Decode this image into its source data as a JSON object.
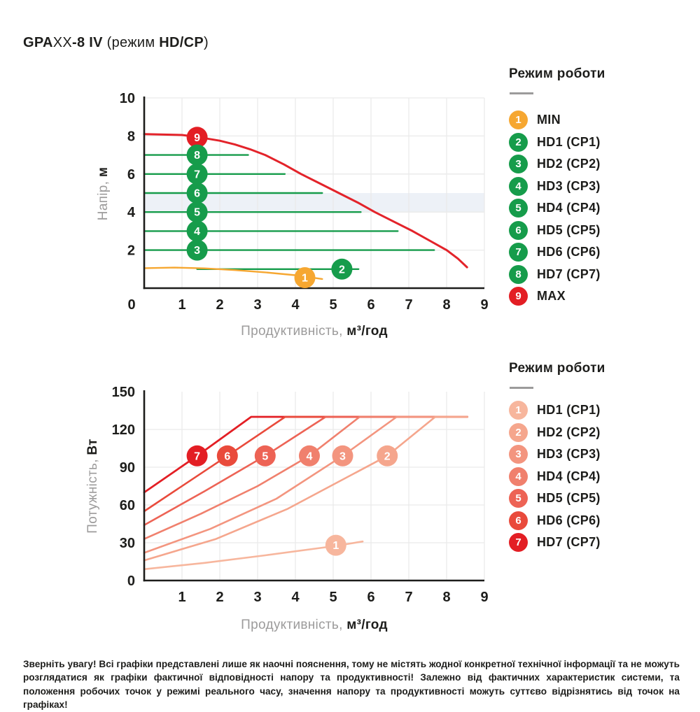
{
  "title": {
    "b1": "GPA",
    "r1": "XX",
    "b2": "-8 IV",
    "r2": " (режим ",
    "b3": "HD/CP",
    "r3": ")"
  },
  "colors": {
    "text_dark": "#1D1D1B",
    "text_gray": "#9C9B9B",
    "grid": "#EAEAEA",
    "band": "#EDF1F7",
    "green": "#169C4B",
    "orange": "#F6A731",
    "red": "#E31E24"
  },
  "legend_top": {
    "title": "Режим роботи",
    "items": [
      {
        "num": "1",
        "label": "MIN",
        "color": "#F6A731"
      },
      {
        "num": "2",
        "label": "HD1 (CP1)",
        "color": "#169C4B"
      },
      {
        "num": "3",
        "label": "HD2 (CP2)",
        "color": "#169C4B"
      },
      {
        "num": "4",
        "label": "HD3 (CP3)",
        "color": "#169C4B"
      },
      {
        "num": "5",
        "label": "HD4 (CP4)",
        "color": "#169C4B"
      },
      {
        "num": "6",
        "label": "HD5 (CP5)",
        "color": "#169C4B"
      },
      {
        "num": "7",
        "label": "HD6 (CP6)",
        "color": "#169C4B"
      },
      {
        "num": "8",
        "label": "HD7 (CP7)",
        "color": "#169C4B"
      },
      {
        "num": "9",
        "label": "MAX",
        "color": "#E31E24"
      }
    ]
  },
  "legend_bottom": {
    "title": "Режим роботи",
    "items": [
      {
        "num": "1",
        "label": "HD1 (CP1)",
        "color": "#F7B69D"
      },
      {
        "num": "2",
        "label": "HD2 (CP2)",
        "color": "#F5A68D"
      },
      {
        "num": "3",
        "label": "HD3 (CP3)",
        "color": "#F3957F"
      },
      {
        "num": "4",
        "label": "HD4 (CP4)",
        "color": "#F0806D"
      },
      {
        "num": "5",
        "label": "HD5 (CP5)",
        "color": "#ED6355"
      },
      {
        "num": "6",
        "label": "HD6 (CP6)",
        "color": "#E94A3B"
      },
      {
        "num": "7",
        "label": "HD7 (CP7)",
        "color": "#E31E24"
      }
    ]
  },
  "chart_data": [
    {
      "type": "line",
      "title": "Крива напору (Напір vs Продуктивність)",
      "xlabel_gray": "Продуктивність,",
      "xlabel_bold": "м³/год",
      "ylabel_gray": "Напір,",
      "ylabel_bold": "м",
      "xlim": [
        0,
        9
      ],
      "ylim": [
        0,
        10
      ],
      "x_ticks": [
        0,
        1,
        2,
        3,
        4,
        5,
        6,
        7,
        8,
        9
      ],
      "y_ticks": [
        2,
        4,
        6,
        8,
        10
      ],
      "grid_x": [
        1,
        2,
        3,
        4,
        5,
        6,
        7,
        8,
        9
      ],
      "grid_y": [
        2,
        4,
        6,
        8,
        10
      ],
      "band": {
        "y0": 4,
        "y1": 5,
        "color": "#EDF1F7"
      },
      "series": [
        {
          "name": "MAX",
          "color": "#E3232A",
          "width": 3,
          "points": [
            [
              0,
              8.1
            ],
            [
              1,
              8.05
            ],
            [
              1.4,
              7.95
            ],
            [
              2,
              7.75
            ],
            [
              2.4,
              7.55
            ],
            [
              2.8,
              7.3
            ],
            [
              3.2,
              7
            ],
            [
              3.7,
              6.5
            ],
            [
              4.15,
              6
            ],
            [
              4.65,
              5.5
            ],
            [
              5.15,
              5
            ],
            [
              5.65,
              4.5
            ],
            [
              6.1,
              4
            ],
            [
              6.6,
              3.5
            ],
            [
              7.1,
              3
            ],
            [
              7.55,
              2.5
            ],
            [
              8,
              2
            ],
            [
              8.3,
              1.55
            ],
            [
              8.54,
              1.1
            ]
          ]
        },
        {
          "name": "HD7 (CP7)",
          "color": "#169C4B",
          "width": 2.4,
          "points": [
            [
              0,
              7
            ],
            [
              2.75,
              7
            ]
          ]
        },
        {
          "name": "HD6 (CP6)",
          "color": "#169C4B",
          "width": 2.4,
          "points": [
            [
              0,
              6
            ],
            [
              3.72,
              6
            ]
          ]
        },
        {
          "name": "HD5 (CP5)",
          "color": "#169C4B",
          "width": 2.4,
          "points": [
            [
              0,
              5
            ],
            [
              4.71,
              5
            ]
          ]
        },
        {
          "name": "HD4 (CP4)",
          "color": "#169C4B",
          "width": 2.4,
          "points": [
            [
              0,
              4
            ],
            [
              5.73,
              4
            ]
          ]
        },
        {
          "name": "HD3 (CP3)",
          "color": "#169C4B",
          "width": 2.4,
          "points": [
            [
              0,
              3
            ],
            [
              6.71,
              3
            ]
          ]
        },
        {
          "name": "HD2 (CP2)",
          "color": "#169C4B",
          "width": 2.4,
          "points": [
            [
              0,
              2
            ],
            [
              7.67,
              2
            ]
          ]
        },
        {
          "name": "HD1 (CP1)",
          "color": "#169C4B",
          "width": 2.4,
          "points": [
            [
              1.4,
              1
            ],
            [
              5.67,
              1
            ]
          ]
        },
        {
          "name": "MIN",
          "color": "#F6A731",
          "width": 2.4,
          "points": [
            [
              0,
              1.05
            ],
            [
              0.8,
              1.08
            ],
            [
              1.6,
              1.04
            ],
            [
              2.4,
              0.95
            ],
            [
              3.2,
              0.83
            ],
            [
              4,
              0.68
            ],
            [
              4.71,
              0.48
            ]
          ]
        }
      ],
      "badges": [
        {
          "num": "9",
          "x": 1.4,
          "y": 7.93,
          "color": "#E31E24"
        },
        {
          "num": "8",
          "x": 1.4,
          "y": 7,
          "color": "#169C4B"
        },
        {
          "num": "7",
          "x": 1.4,
          "y": 6,
          "color": "#169C4B"
        },
        {
          "num": "6",
          "x": 1.4,
          "y": 5,
          "color": "#169C4B"
        },
        {
          "num": "5",
          "x": 1.4,
          "y": 4,
          "color": "#169C4B"
        },
        {
          "num": "4",
          "x": 1.4,
          "y": 3,
          "color": "#169C4B"
        },
        {
          "num": "3",
          "x": 1.4,
          "y": 2,
          "color": "#169C4B"
        },
        {
          "num": "2",
          "x": 5.23,
          "y": 1,
          "color": "#169C4B"
        },
        {
          "num": "1",
          "x": 4.25,
          "y": 0.55,
          "color": "#F6A731"
        }
      ]
    },
    {
      "type": "line",
      "title": "Крива потужності (Потужність vs Продуктивність)",
      "xlabel_gray": "Продуктивність,",
      "xlabel_bold": "м³/год",
      "ylabel_gray": "Потужність,",
      "ylabel_bold": "Вт",
      "xlim": [
        0,
        9
      ],
      "ylim": [
        0,
        150
      ],
      "x_ticks": [
        1,
        2,
        3,
        4,
        5,
        6,
        7,
        8,
        9
      ],
      "y_ticks": [
        0,
        30,
        60,
        90,
        120,
        150
      ],
      "grid_x": [
        1,
        2,
        3,
        4,
        5,
        6,
        7,
        8,
        9
      ],
      "grid_y": [
        30,
        60,
        90,
        120
      ],
      "band": null,
      "series": [
        {
          "name": "HD7 (CP7)",
          "color": "#E31E24",
          "width": 2.8,
          "points": [
            [
              0,
              70
            ],
            [
              1.4,
              99
            ],
            [
              2.83,
              130
            ],
            [
              8.55,
              130
            ]
          ]
        },
        {
          "name": "HD6 (CP6)",
          "color": "#E94A3B",
          "width": 2.6,
          "points": [
            [
              0,
              55
            ],
            [
              2.2,
              99
            ],
            [
              3.73,
              130
            ],
            [
              8.55,
              130
            ]
          ]
        },
        {
          "name": "HD5 (CP5)",
          "color": "#ED6355",
          "width": 2.6,
          "points": [
            [
              0,
              44
            ],
            [
              1.6,
              71
            ],
            [
              3.2,
              99
            ],
            [
              4.8,
              130
            ],
            [
              8.55,
              130
            ]
          ]
        },
        {
          "name": "HD4 (CP4)",
          "color": "#F0806D",
          "width": 2.6,
          "points": [
            [
              0,
              33
            ],
            [
              1.5,
              53
            ],
            [
              3,
              75
            ],
            [
              4.37,
              99
            ],
            [
              5.7,
              130
            ],
            [
              8.55,
              130
            ]
          ]
        },
        {
          "name": "HD3 (CP3)",
          "color": "#F3957F",
          "width": 2.6,
          "points": [
            [
              0,
              22
            ],
            [
              1.75,
              41
            ],
            [
              3.5,
              65
            ],
            [
              5.25,
              99
            ],
            [
              6.68,
              130
            ],
            [
              8.55,
              130
            ]
          ]
        },
        {
          "name": "HD2 (CP2)",
          "color": "#F5A68D",
          "width": 2.6,
          "points": [
            [
              0,
              16
            ],
            [
              1.9,
              33
            ],
            [
              3.8,
              57
            ],
            [
              6.43,
              99
            ],
            [
              7.7,
              130
            ],
            [
              8.55,
              130
            ]
          ]
        },
        {
          "name": "HD1 (CP1)",
          "color": "#F7B69D",
          "width": 2.6,
          "points": [
            [
              0,
              9
            ],
            [
              1.6,
              14
            ],
            [
              3.2,
              20
            ],
            [
              5.07,
              27.5
            ],
            [
              5.78,
              31
            ]
          ]
        }
      ],
      "badges": [
        {
          "num": "7",
          "x": 1.4,
          "y": 99,
          "color": "#E31E24"
        },
        {
          "num": "6",
          "x": 2.2,
          "y": 99,
          "color": "#E94A3B"
        },
        {
          "num": "5",
          "x": 3.2,
          "y": 99,
          "color": "#ED6355"
        },
        {
          "num": "4",
          "x": 4.37,
          "y": 99,
          "color": "#F0806D"
        },
        {
          "num": "3",
          "x": 5.25,
          "y": 99,
          "color": "#F3957F"
        },
        {
          "num": "2",
          "x": 6.43,
          "y": 99,
          "color": "#F5A68D"
        },
        {
          "num": "1",
          "x": 5.07,
          "y": 28,
          "color": "#F7B69D"
        }
      ]
    }
  ],
  "disclaimer": "Зверніть увагу! Всі графіки представлені лише як наочні пояснення, тому не містять жодної конкретної технічної інформації та не можуть розглядатися як графіки фактичної відповідності напору та продуктивності! Залежно від фактичних характеристик системи, та положення робочих точок у режимі реального часу, значення напору та продуктивності можуть суттєво відрізнятись від точок на графіках!"
}
